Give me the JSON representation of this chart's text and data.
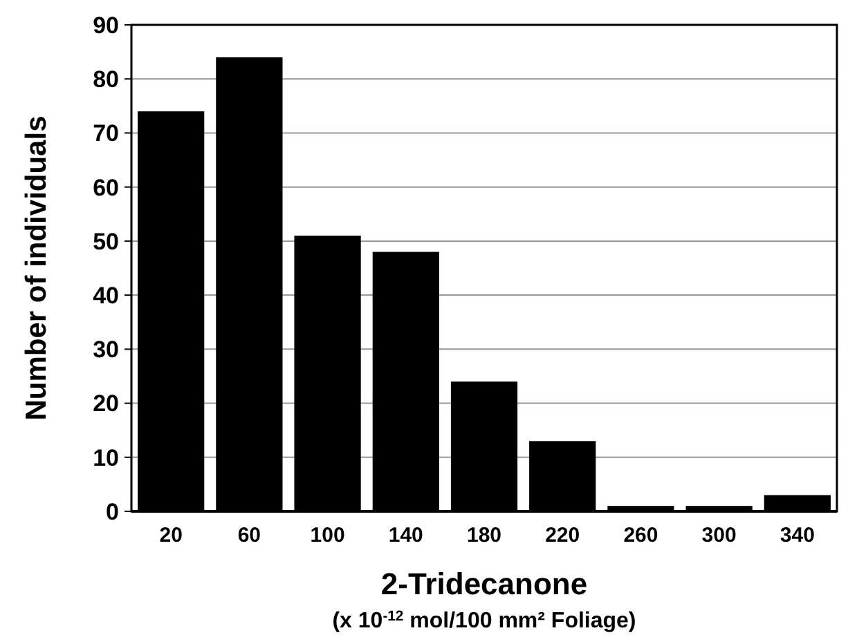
{
  "chart_data": {
    "type": "bar",
    "xlabel": "2-Tridecanone\n(x 10$^{-12}$ mol/100 mm² Foliage)",
    "ylabel": "Number of individuals",
    "categories": [
      "20",
      "60",
      "100",
      "140",
      "180",
      "220",
      "260",
      "300",
      "340"
    ],
    "values": [
      74,
      84,
      51,
      48,
      24,
      13,
      1,
      1,
      3
    ],
    "color": "#000000",
    "ylim": [
      0,
      90
    ],
    "yticks": [
      0,
      10,
      20,
      30,
      40,
      50,
      60,
      70,
      80,
      90
    ],
    "grid": "y"
  }
}
